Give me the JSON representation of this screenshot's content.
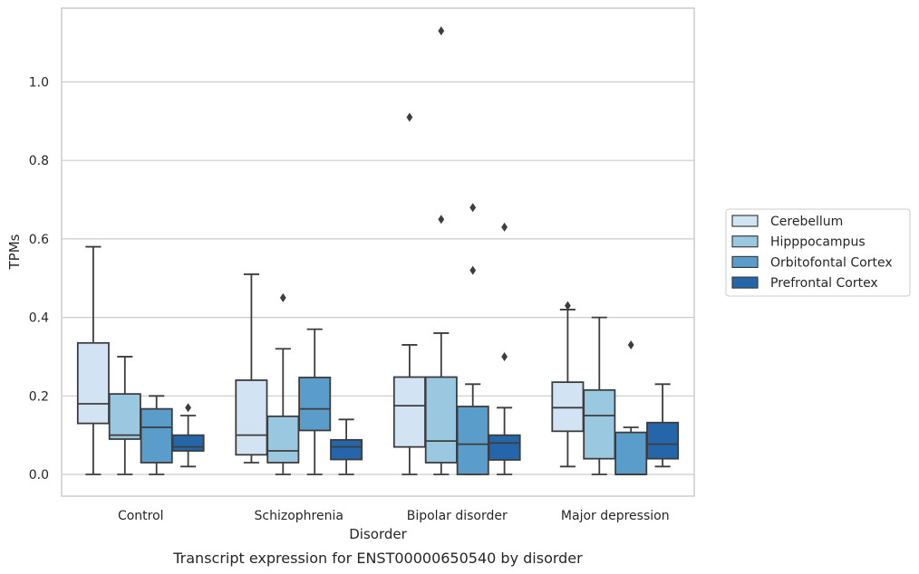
{
  "chart_data": {
    "type": "box",
    "caption": "Transcript expression for ENST00000650540 by disorder",
    "xlabel": "Disorder",
    "ylabel": "TPMs",
    "ylim": [
      -0.055,
      1.19
    ],
    "yticks": [
      0.0,
      0.2,
      0.4,
      0.6,
      0.8,
      1.0
    ],
    "grid": "horizontal",
    "legend_position": "right",
    "categories": [
      "Control",
      "Schizophrenia",
      "Bipolar disorder",
      "Major depression"
    ],
    "series": [
      {
        "name": "Cerebellum",
        "color": "#d2e3f3",
        "boxes": [
          {
            "min": 0.0,
            "q1": 0.13,
            "median": 0.18,
            "q3": 0.335,
            "max": 0.58,
            "outliers": []
          },
          {
            "min": 0.03,
            "q1": 0.05,
            "median": 0.1,
            "q3": 0.24,
            "max": 0.51,
            "outliers": []
          },
          {
            "min": 0.0,
            "q1": 0.07,
            "median": 0.175,
            "q3": 0.248,
            "max": 0.33,
            "outliers": [
              0.91
            ]
          },
          {
            "min": 0.02,
            "q1": 0.11,
            "median": 0.17,
            "q3": 0.235,
            "max": 0.42,
            "outliers": [
              0.43
            ]
          }
        ]
      },
      {
        "name": "Hipppocampus",
        "color": "#9ac8e0",
        "boxes": [
          {
            "min": 0.0,
            "q1": 0.09,
            "median": 0.1,
            "q3": 0.205,
            "max": 0.3,
            "outliers": []
          },
          {
            "min": 0.0,
            "q1": 0.03,
            "median": 0.06,
            "q3": 0.148,
            "max": 0.32,
            "outliers": [
              0.45
            ]
          },
          {
            "min": 0.0,
            "q1": 0.03,
            "median": 0.085,
            "q3": 0.248,
            "max": 0.36,
            "outliers": [
              0.65,
              1.13
            ]
          },
          {
            "min": 0.0,
            "q1": 0.04,
            "median": 0.15,
            "q3": 0.215,
            "max": 0.4,
            "outliers": []
          }
        ]
      },
      {
        "name": "Orbitofontal Cortex",
        "color": "#5a9dcb",
        "boxes": [
          {
            "min": 0.0,
            "q1": 0.03,
            "median": 0.12,
            "q3": 0.167,
            "max": 0.2,
            "outliers": []
          },
          {
            "min": 0.0,
            "q1": 0.112,
            "median": 0.167,
            "q3": 0.247,
            "max": 0.37,
            "outliers": []
          },
          {
            "min": 0.0,
            "q1": 0.0,
            "median": 0.077,
            "q3": 0.173,
            "max": 0.23,
            "outliers": [
              0.52,
              0.68
            ]
          },
          {
            "min": 0.0,
            "q1": 0.0,
            "median": 0.0,
            "q3": 0.107,
            "max": 0.12,
            "outliers": [
              0.33
            ]
          }
        ]
      },
      {
        "name": "Prefrontal Cortex",
        "color": "#2466a9",
        "boxes": [
          {
            "min": 0.02,
            "q1": 0.06,
            "median": 0.07,
            "q3": 0.1,
            "max": 0.15,
            "outliers": [
              0.17
            ]
          },
          {
            "min": 0.0,
            "q1": 0.038,
            "median": 0.07,
            "q3": 0.088,
            "max": 0.14,
            "outliers": []
          },
          {
            "min": 0.0,
            "q1": 0.037,
            "median": 0.08,
            "q3": 0.1,
            "max": 0.17,
            "outliers": [
              0.3,
              0.63
            ]
          },
          {
            "min": 0.02,
            "q1": 0.04,
            "median": 0.077,
            "q3": 0.132,
            "max": 0.23,
            "outliers": []
          }
        ]
      }
    ]
  }
}
